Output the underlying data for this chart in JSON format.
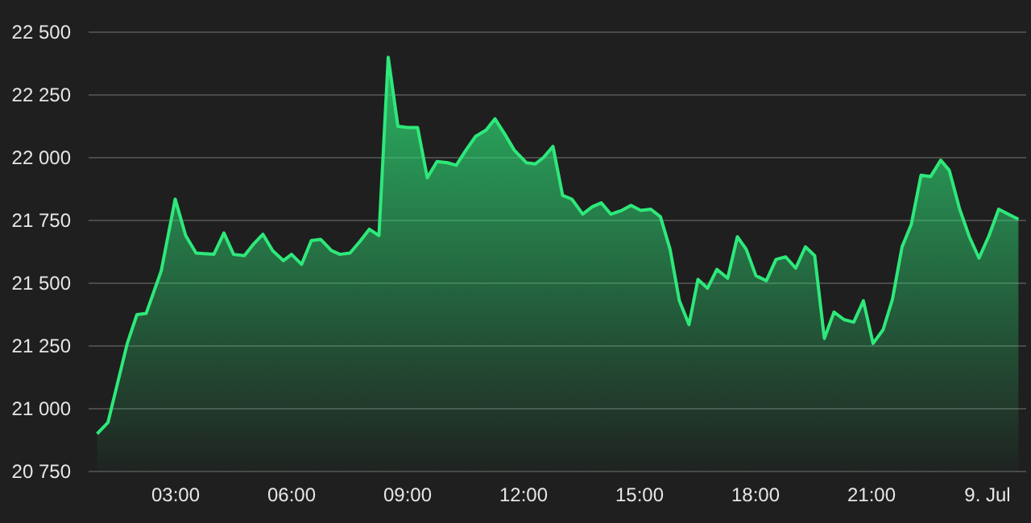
{
  "chart_data": {
    "type": "area",
    "x": [
      0.97,
      1.25,
      1.75,
      2.0,
      2.24,
      2.63,
      2.99,
      3.26,
      3.53,
      3.99,
      4.25,
      4.5,
      4.78,
      5.01,
      5.26,
      5.51,
      5.79,
      6.0,
      6.26,
      6.51,
      6.75,
      7.03,
      7.25,
      7.51,
      7.76,
      8.01,
      8.26,
      8.5,
      8.75,
      9.01,
      9.26,
      9.51,
      9.76,
      10.03,
      10.26,
      10.51,
      10.76,
      11.03,
      11.26,
      11.51,
      11.76,
      12.07,
      12.3,
      12.51,
      12.76,
      13.01,
      13.25,
      13.53,
      13.78,
      14.01,
      14.26,
      14.54,
      14.78,
      15.03,
      15.29,
      15.54,
      15.79,
      16.03,
      16.28,
      16.51,
      16.76,
      17.0,
      17.28,
      17.53,
      17.76,
      18.01,
      18.28,
      18.53,
      18.78,
      19.04,
      19.29,
      19.53,
      19.78,
      20.03,
      20.29,
      20.54,
      20.79,
      21.04,
      21.3,
      21.54,
      21.79,
      22.03,
      22.28,
      22.53,
      22.79,
      23.01,
      23.28,
      23.53,
      23.78,
      24.04,
      24.29,
      24.54,
      24.8
    ],
    "series": [
      {
        "color": "#2ee87a",
        "values": [
          20900,
          20945,
          21260,
          21375,
          21380,
          21550,
          21835,
          21690,
          21620,
          21615,
          21700,
          21615,
          21610,
          21655,
          21695,
          21630,
          21590,
          21615,
          21575,
          21670,
          21675,
          21630,
          21615,
          21620,
          21665,
          21715,
          21690,
          22400,
          22125,
          22120,
          22120,
          21920,
          21985,
          21980,
          21970,
          22030,
          22085,
          22110,
          22155,
          22095,
          22030,
          21980,
          21975,
          22000,
          22045,
          21850,
          21835,
          21775,
          21805,
          21820,
          21775,
          21790,
          21810,
          21790,
          21795,
          21765,
          21635,
          21430,
          21335,
          21515,
          21480,
          21555,
          21520,
          21685,
          21635,
          21530,
          21510,
          21595,
          21605,
          21560,
          21645,
          21610,
          21280,
          21385,
          21355,
          21345,
          21430,
          21260,
          21315,
          21435,
          21645,
          21735,
          21930,
          21925,
          21990,
          21950,
          21795,
          21685,
          21600,
          21690,
          21795,
          21775,
          21755
        ]
      }
    ],
    "xlim": [
      0.75,
      25
    ],
    "xticks": [
      {
        "value": 3,
        "label": "03:00"
      },
      {
        "value": 6,
        "label": "06:00"
      },
      {
        "value": 9,
        "label": "09:00"
      },
      {
        "value": 12,
        "label": "12:00"
      },
      {
        "value": 15,
        "label": "15:00"
      },
      {
        "value": 18,
        "label": "18:00"
      },
      {
        "value": 21,
        "label": "21:00"
      },
      {
        "value": 24,
        "label": "9. Jul"
      }
    ],
    "ylim": [
      20750,
      22500
    ],
    "yticks": [
      {
        "value": 20750,
        "label": "20 750"
      },
      {
        "value": 21000,
        "label": "21 000"
      },
      {
        "value": 21250,
        "label": "21 250"
      },
      {
        "value": 21500,
        "label": "21 500"
      },
      {
        "value": 21750,
        "label": "21 750"
      },
      {
        "value": 22000,
        "label": "22 000"
      },
      {
        "value": 22250,
        "label": "22 250"
      },
      {
        "value": 22500,
        "label": "22 500"
      }
    ],
    "grid": "y"
  }
}
